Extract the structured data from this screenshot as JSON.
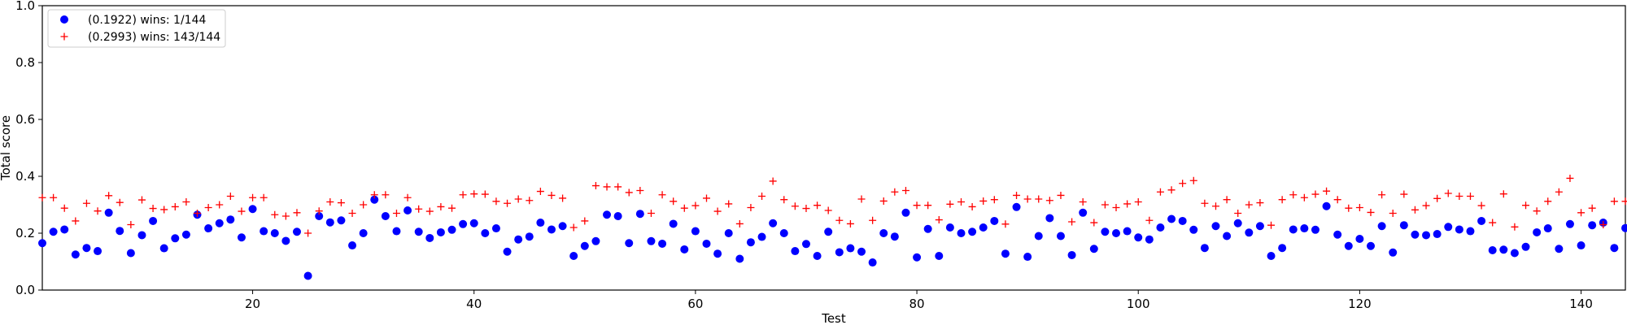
{
  "chart_data": {
    "type": "scatter",
    "xlabel": "Test",
    "ylabel": "Total score",
    "xlim": [
      1,
      144
    ],
    "ylim": [
      0,
      1
    ],
    "x_ticks": [
      20,
      40,
      60,
      80,
      100,
      120,
      140
    ],
    "y_ticks": [
      0.0,
      0.2,
      0.4,
      0.6,
      0.8,
      1.0
    ],
    "x_tick_labels": [
      "20",
      "40",
      "60",
      "80",
      "100",
      "120",
      "140"
    ],
    "y_tick_labels": [
      "0.0",
      "0.2",
      "0.4",
      "0.6",
      "0.8",
      "1.0"
    ],
    "grid": false,
    "legend_position": "upper-left",
    "series": [
      {
        "name": "(0.1922) wins: 1/144",
        "marker": "circle",
        "color": "#0000ff",
        "values": [
          0.165,
          0.205,
          0.213,
          0.125,
          0.148,
          0.137,
          0.272,
          0.208,
          0.13,
          0.193,
          0.243,
          0.147,
          0.182,
          0.195,
          0.265,
          0.217,
          0.235,
          0.248,
          0.185,
          0.285,
          0.207,
          0.2,
          0.173,
          0.205,
          0.05,
          0.26,
          0.238,
          0.245,
          0.157,
          0.2,
          0.318,
          0.26,
          0.207,
          0.28,
          0.205,
          0.183,
          0.203,
          0.212,
          0.232,
          0.235,
          0.2,
          0.217,
          0.135,
          0.178,
          0.188,
          0.237,
          0.213,
          0.225,
          0.12,
          0.155,
          0.172,
          0.265,
          0.26,
          0.165,
          0.268,
          0.172,
          0.163,
          0.233,
          0.143,
          0.207,
          0.163,
          0.128,
          0.2,
          0.11,
          0.168,
          0.187,
          0.235,
          0.2,
          0.137,
          0.162,
          0.12,
          0.205,
          0.133,
          0.147,
          0.135,
          0.097,
          0.2,
          0.188,
          0.272,
          0.115,
          0.215,
          0.12,
          0.22,
          0.2,
          0.205,
          0.22,
          0.243,
          0.128,
          0.292,
          0.117,
          0.19,
          0.253,
          0.19,
          0.123,
          0.272,
          0.145,
          0.205,
          0.2,
          0.207,
          0.185,
          0.178,
          0.22,
          0.25,
          0.243,
          0.212,
          0.148,
          0.225,
          0.19,
          0.235,
          0.202,
          0.225,
          0.12,
          0.148,
          0.213,
          0.217,
          0.212,
          0.295,
          0.195,
          0.155,
          0.18,
          0.155,
          0.225,
          0.132,
          0.228,
          0.195,
          0.193,
          0.197,
          0.222,
          0.213,
          0.207,
          0.243,
          0.14,
          0.142,
          0.13,
          0.152,
          0.203,
          0.217,
          0.145,
          0.232,
          0.157,
          0.228,
          0.237,
          0.148,
          0.218
        ]
      },
      {
        "name": "(0.2993) wins: 143/144",
        "marker": "plus",
        "color": "#ff0000",
        "values": [
          0.325,
          0.325,
          0.288,
          0.243,
          0.305,
          0.278,
          0.332,
          0.308,
          0.23,
          0.317,
          0.287,
          0.283,
          0.293,
          0.31,
          0.27,
          0.29,
          0.3,
          0.33,
          0.277,
          0.325,
          0.325,
          0.265,
          0.26,
          0.272,
          0.2,
          0.278,
          0.31,
          0.307,
          0.27,
          0.3,
          0.335,
          0.335,
          0.27,
          0.325,
          0.285,
          0.277,
          0.293,
          0.288,
          0.335,
          0.338,
          0.337,
          0.312,
          0.305,
          0.32,
          0.315,
          0.347,
          0.333,
          0.323,
          0.22,
          0.243,
          0.367,
          0.363,
          0.363,
          0.343,
          0.35,
          0.27,
          0.335,
          0.312,
          0.288,
          0.297,
          0.323,
          0.277,
          0.303,
          0.233,
          0.29,
          0.33,
          0.383,
          0.318,
          0.295,
          0.287,
          0.298,
          0.28,
          0.245,
          0.233,
          0.32,
          0.245,
          0.313,
          0.345,
          0.35,
          0.298,
          0.298,
          0.247,
          0.302,
          0.31,
          0.293,
          0.313,
          0.318,
          0.232,
          0.333,
          0.32,
          0.32,
          0.315,
          0.333,
          0.24,
          0.31,
          0.237,
          0.3,
          0.29,
          0.303,
          0.31,
          0.245,
          0.345,
          0.352,
          0.375,
          0.385,
          0.305,
          0.295,
          0.318,
          0.27,
          0.3,
          0.307,
          0.228,
          0.318,
          0.335,
          0.325,
          0.337,
          0.348,
          0.318,
          0.288,
          0.29,
          0.273,
          0.335,
          0.27,
          0.337,
          0.282,
          0.297,
          0.322,
          0.34,
          0.33,
          0.33,
          0.297,
          0.237,
          0.338,
          0.222,
          0.298,
          0.278,
          0.312,
          0.345,
          0.393,
          0.272,
          0.288,
          0.23,
          0.312,
          0.312
        ]
      }
    ]
  }
}
